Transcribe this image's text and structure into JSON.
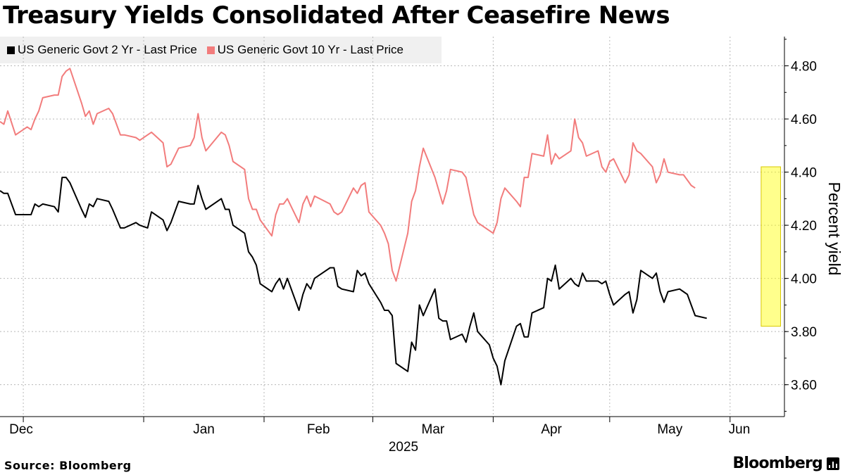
{
  "title": "Treasury Yields Consolidated After Ceasefire News",
  "source": "Source: Bloomberg",
  "brand": "Bloomberg",
  "chart_data": {
    "type": "line",
    "title": "Treasury Yields Consolidated After Ceasefire News",
    "ylabel": "Percent yield",
    "xlabel": "2025",
    "ylim": [
      3.48,
      4.91
    ],
    "y_ticks": [
      3.6,
      3.8,
      4.0,
      4.2,
      4.4,
      4.6,
      4.8
    ],
    "y_tick_labels": [
      "3.60",
      "3.80",
      "4.00",
      "4.20",
      "4.40",
      "4.60",
      "4.80"
    ],
    "x_range": [
      "2024-11-25",
      "2025-06-15"
    ],
    "x_ticks": [
      {
        "label": "Dec",
        "date": "2024-12-01"
      },
      {
        "label": "Jan",
        "date": "2025-01-01"
      },
      {
        "label": "Feb",
        "date": "2025-02-01"
      },
      {
        "label": "Mar",
        "date": "2025-03-01"
      },
      {
        "label": "Apr",
        "date": "2025-04-01"
      },
      {
        "label": "May",
        "date": "2025-05-01"
      },
      {
        "label": "Jun",
        "date": "2025-06-01"
      }
    ],
    "grid": true,
    "legend_position": "top-left",
    "highlight": {
      "x_start": "2025-06-09",
      "x_end": "2025-06-14",
      "y_start": 3.82,
      "y_end": 4.42,
      "color": "#ffff00"
    },
    "series": [
      {
        "name": "US Generic Govt 2 Yr - Last Price",
        "color": "#000000",
        "points": [
          [
            "2024-11-25",
            4.33
          ],
          [
            "2024-11-26",
            4.32
          ],
          [
            "2024-11-27",
            4.32
          ],
          [
            "2024-11-29",
            4.24
          ],
          [
            "2024-12-02",
            4.24
          ],
          [
            "2024-12-03",
            4.24
          ],
          [
            "2024-12-04",
            4.28
          ],
          [
            "2024-12-05",
            4.27
          ],
          [
            "2024-12-06",
            4.28
          ],
          [
            "2024-12-09",
            4.27
          ],
          [
            "2024-12-10",
            4.25
          ],
          [
            "2024-12-11",
            4.38
          ],
          [
            "2024-12-12",
            4.38
          ],
          [
            "2024-12-13",
            4.36
          ],
          [
            "2024-12-16",
            4.26
          ],
          [
            "2024-12-17",
            4.23
          ],
          [
            "2024-12-18",
            4.28
          ],
          [
            "2024-12-19",
            4.27
          ],
          [
            "2024-12-20",
            4.3
          ],
          [
            "2024-12-23",
            4.29
          ],
          [
            "2024-12-24",
            4.26
          ],
          [
            "2024-12-26",
            4.19
          ],
          [
            "2024-12-27",
            4.19
          ],
          [
            "2024-12-30",
            4.21
          ],
          [
            "2024-12-31",
            4.2
          ],
          [
            "2025-01-02",
            4.19
          ],
          [
            "2025-01-03",
            4.25
          ],
          [
            "2025-01-06",
            4.22
          ],
          [
            "2025-01-07",
            4.18
          ],
          [
            "2025-01-08",
            4.21
          ],
          [
            "2025-01-10",
            4.29
          ],
          [
            "2025-01-13",
            4.28
          ],
          [
            "2025-01-14",
            4.28
          ],
          [
            "2025-01-15",
            4.35
          ],
          [
            "2025-01-16",
            4.3
          ],
          [
            "2025-01-17",
            4.26
          ],
          [
            "2025-01-21",
            4.3
          ],
          [
            "2025-01-22",
            4.26
          ],
          [
            "2025-01-23",
            4.26
          ],
          [
            "2025-01-24",
            4.2
          ],
          [
            "2025-01-27",
            4.17
          ],
          [
            "2025-01-28",
            4.1
          ],
          [
            "2025-01-29",
            4.08
          ],
          [
            "2025-01-30",
            4.05
          ],
          [
            "2025-01-31",
            3.98
          ],
          [
            "2025-02-03",
            3.95
          ],
          [
            "2025-02-04",
            3.98
          ],
          [
            "2025-02-05",
            4.0
          ],
          [
            "2025-02-06",
            3.96
          ],
          [
            "2025-02-07",
            4.0
          ],
          [
            "2025-02-10",
            3.88
          ],
          [
            "2025-02-11",
            3.94
          ],
          [
            "2025-02-12",
            3.98
          ],
          [
            "2025-02-13",
            3.96
          ],
          [
            "2025-02-14",
            4.0
          ],
          [
            "2025-02-18",
            4.04
          ],
          [
            "2025-02-19",
            4.04
          ],
          [
            "2025-02-20",
            3.97
          ],
          [
            "2025-02-21",
            3.96
          ],
          [
            "2025-02-24",
            3.95
          ],
          [
            "2025-02-25",
            4.03
          ],
          [
            "2025-02-26",
            4.01
          ],
          [
            "2025-02-27",
            4.02
          ],
          [
            "2025-02-28",
            3.98
          ],
          [
            "2025-03-03",
            3.91
          ],
          [
            "2025-03-04",
            3.88
          ],
          [
            "2025-03-05",
            3.88
          ],
          [
            "2025-03-06",
            3.86
          ],
          [
            "2025-03-07",
            3.68
          ],
          [
            "2025-03-10",
            3.65
          ],
          [
            "2025-03-11",
            3.76
          ],
          [
            "2025-03-12",
            3.73
          ],
          [
            "2025-03-13",
            3.9
          ],
          [
            "2025-03-14",
            3.86
          ],
          [
            "2025-03-17",
            3.96
          ],
          [
            "2025-03-18",
            3.85
          ],
          [
            "2025-03-19",
            3.84
          ],
          [
            "2025-03-20",
            3.84
          ],
          [
            "2025-03-21",
            3.77
          ],
          [
            "2025-03-24",
            3.79
          ],
          [
            "2025-03-25",
            3.76
          ],
          [
            "2025-03-26",
            3.82
          ],
          [
            "2025-03-27",
            3.87
          ],
          [
            "2025-03-28",
            3.8
          ],
          [
            "2025-03-31",
            3.75
          ],
          [
            "2025-04-01",
            3.7
          ],
          [
            "2025-04-02",
            3.67
          ],
          [
            "2025-04-03",
            3.6
          ],
          [
            "2025-04-04",
            3.69
          ],
          [
            "2025-04-07",
            3.82
          ],
          [
            "2025-04-08",
            3.83
          ],
          [
            "2025-04-09",
            3.78
          ],
          [
            "2025-04-10",
            3.78
          ],
          [
            "2025-04-11",
            3.87
          ],
          [
            "2025-04-14",
            3.89
          ],
          [
            "2025-04-15",
            4.0
          ],
          [
            "2025-04-16",
            3.99
          ],
          [
            "2025-04-17",
            4.05
          ],
          [
            "2025-04-18",
            3.96
          ],
          [
            "2025-04-21",
            4.0
          ],
          [
            "2025-04-22",
            3.98
          ],
          [
            "2025-04-23",
            3.97
          ],
          [
            "2025-04-24",
            4.02
          ],
          [
            "2025-04-25",
            3.99
          ],
          [
            "2025-04-28",
            3.99
          ],
          [
            "2025-04-29",
            3.98
          ],
          [
            "2025-04-30",
            3.99
          ],
          [
            "2025-05-01",
            3.94
          ],
          [
            "2025-05-02",
            3.9
          ],
          [
            "2025-05-05",
            3.94
          ],
          [
            "2025-05-06",
            3.95
          ],
          [
            "2025-05-07",
            3.87
          ],
          [
            "2025-05-08",
            3.92
          ],
          [
            "2025-05-09",
            4.03
          ],
          [
            "2025-05-12",
            4.0
          ],
          [
            "2025-05-13",
            4.02
          ],
          [
            "2025-05-14",
            3.95
          ],
          [
            "2025-05-15",
            3.91
          ],
          [
            "2025-05-16",
            3.95
          ],
          [
            "2025-05-19",
            3.96
          ],
          [
            "2025-05-20",
            3.95
          ],
          [
            "2025-05-21",
            3.94
          ],
          [
            "2025-05-22",
            3.9
          ],
          [
            "2025-05-23",
            3.86
          ],
          [
            "2025-05-26",
            3.85
          ]
        ]
      },
      {
        "name": "US Generic Govt 10 Yr - Last Price",
        "color": "#f27c7c",
        "points": [
          [
            "2024-11-25",
            4.59
          ],
          [
            "2024-11-26",
            4.58
          ],
          [
            "2024-11-27",
            4.63
          ],
          [
            "2024-11-29",
            4.54
          ],
          [
            "2024-12-02",
            4.57
          ],
          [
            "2024-12-03",
            4.56
          ],
          [
            "2024-12-04",
            4.6
          ],
          [
            "2024-12-05",
            4.63
          ],
          [
            "2024-12-06",
            4.68
          ],
          [
            "2024-12-09",
            4.69
          ],
          [
            "2024-12-10",
            4.69
          ],
          [
            "2024-12-11",
            4.76
          ],
          [
            "2024-12-12",
            4.78
          ],
          [
            "2024-12-13",
            4.79
          ],
          [
            "2024-12-16",
            4.66
          ],
          [
            "2024-12-17",
            4.61
          ],
          [
            "2024-12-18",
            4.63
          ],
          [
            "2024-12-19",
            4.58
          ],
          [
            "2024-12-20",
            4.62
          ],
          [
            "2024-12-23",
            4.64
          ],
          [
            "2024-12-24",
            4.62
          ],
          [
            "2024-12-26",
            4.54
          ],
          [
            "2024-12-27",
            4.54
          ],
          [
            "2024-12-30",
            4.53
          ],
          [
            "2024-12-31",
            4.52
          ],
          [
            "2025-01-02",
            4.54
          ],
          [
            "2025-01-03",
            4.55
          ],
          [
            "2025-01-06",
            4.51
          ],
          [
            "2025-01-07",
            4.42
          ],
          [
            "2025-01-08",
            4.43
          ],
          [
            "2025-01-10",
            4.49
          ],
          [
            "2025-01-13",
            4.5
          ],
          [
            "2025-01-14",
            4.53
          ],
          [
            "2025-01-15",
            4.62
          ],
          [
            "2025-01-16",
            4.53
          ],
          [
            "2025-01-17",
            4.48
          ],
          [
            "2025-01-21",
            4.55
          ],
          [
            "2025-01-22",
            4.54
          ],
          [
            "2025-01-23",
            4.5
          ],
          [
            "2025-01-24",
            4.44
          ],
          [
            "2025-01-27",
            4.41
          ],
          [
            "2025-01-28",
            4.3
          ],
          [
            "2025-01-29",
            4.26
          ],
          [
            "2025-01-30",
            4.26
          ],
          [
            "2025-01-31",
            4.22
          ],
          [
            "2025-02-03",
            4.16
          ],
          [
            "2025-02-04",
            4.24
          ],
          [
            "2025-02-05",
            4.28
          ],
          [
            "2025-02-06",
            4.28
          ],
          [
            "2025-02-07",
            4.3
          ],
          [
            "2025-02-10",
            4.21
          ],
          [
            "2025-02-11",
            4.28
          ],
          [
            "2025-02-12",
            4.31
          ],
          [
            "2025-02-13",
            4.27
          ],
          [
            "2025-02-14",
            4.31
          ],
          [
            "2025-02-18",
            4.28
          ],
          [
            "2025-02-19",
            4.25
          ],
          [
            "2025-02-20",
            4.24
          ],
          [
            "2025-02-21",
            4.25
          ],
          [
            "2025-02-24",
            4.34
          ],
          [
            "2025-02-25",
            4.32
          ],
          [
            "2025-02-26",
            4.35
          ],
          [
            "2025-02-27",
            4.36
          ],
          [
            "2025-02-28",
            4.25
          ],
          [
            "2025-03-03",
            4.2
          ],
          [
            "2025-03-04",
            4.17
          ],
          [
            "2025-03-05",
            4.13
          ],
          [
            "2025-03-06",
            4.03
          ],
          [
            "2025-03-07",
            3.99
          ],
          [
            "2025-03-10",
            4.17
          ],
          [
            "2025-03-11",
            4.29
          ],
          [
            "2025-03-12",
            4.33
          ],
          [
            "2025-03-13",
            4.42
          ],
          [
            "2025-03-14",
            4.49
          ],
          [
            "2025-03-17",
            4.38
          ],
          [
            "2025-03-18",
            4.33
          ],
          [
            "2025-03-19",
            4.28
          ],
          [
            "2025-03-20",
            4.33
          ],
          [
            "2025-03-21",
            4.41
          ],
          [
            "2025-03-24",
            4.4
          ],
          [
            "2025-03-25",
            4.38
          ],
          [
            "2025-03-26",
            4.31
          ],
          [
            "2025-03-27",
            4.24
          ],
          [
            "2025-03-28",
            4.21
          ],
          [
            "2025-03-31",
            4.18
          ],
          [
            "2025-04-01",
            4.17
          ],
          [
            "2025-04-02",
            4.21
          ],
          [
            "2025-04-03",
            4.3
          ],
          [
            "2025-04-04",
            4.34
          ],
          [
            "2025-04-07",
            4.29
          ],
          [
            "2025-04-08",
            4.27
          ],
          [
            "2025-04-09",
            4.38
          ],
          [
            "2025-04-10",
            4.38
          ],
          [
            "2025-04-11",
            4.47
          ],
          [
            "2025-04-14",
            4.46
          ],
          [
            "2025-04-15",
            4.54
          ],
          [
            "2025-04-16",
            4.43
          ],
          [
            "2025-04-17",
            4.47
          ],
          [
            "2025-04-18",
            4.45
          ],
          [
            "2025-04-21",
            4.48
          ],
          [
            "2025-04-22",
            4.6
          ],
          [
            "2025-04-23",
            4.53
          ],
          [
            "2025-04-24",
            4.51
          ],
          [
            "2025-04-25",
            4.46
          ],
          [
            "2025-04-28",
            4.48
          ],
          [
            "2025-04-29",
            4.42
          ],
          [
            "2025-04-30",
            4.4
          ],
          [
            "2025-05-01",
            4.44
          ],
          [
            "2025-05-02",
            4.45
          ],
          [
            "2025-05-05",
            4.36
          ],
          [
            "2025-05-06",
            4.39
          ],
          [
            "2025-05-07",
            4.51
          ],
          [
            "2025-05-08",
            4.48
          ],
          [
            "2025-05-09",
            4.47
          ],
          [
            "2025-05-12",
            4.42
          ],
          [
            "2025-05-13",
            4.36
          ],
          [
            "2025-05-14",
            4.39
          ],
          [
            "2025-05-15",
            4.45
          ],
          [
            "2025-05-16",
            4.4
          ],
          [
            "2025-05-19",
            4.39
          ],
          [
            "2025-05-20",
            4.39
          ],
          [
            "2025-05-21",
            4.37
          ],
          [
            "2025-05-22",
            4.35
          ],
          [
            "2025-05-23",
            4.34
          ]
        ]
      }
    ]
  }
}
